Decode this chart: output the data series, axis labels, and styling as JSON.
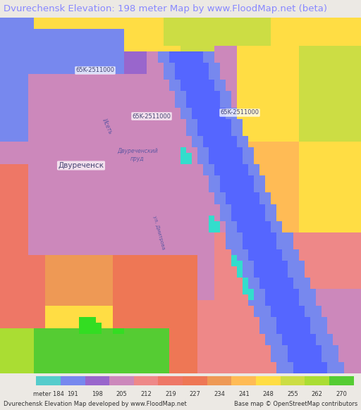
{
  "title": "Dvurechensk Elevation: 198 meter Map by www.FloodMap.net (beta)",
  "title_color": "#8888ff",
  "title_fontsize": 9.5,
  "bg_color": "#ece9e4",
  "legend_labels": [
    184,
    191,
    198,
    205,
    212,
    219,
    227,
    234,
    241,
    248,
    255,
    262,
    270
  ],
  "legend_colors": [
    "#55cccc",
    "#7788ee",
    "#9966cc",
    "#cc88bb",
    "#ee8888",
    "#ee7766",
    "#ee7755",
    "#ee9955",
    "#ffbb55",
    "#ffdd44",
    "#ccdd44",
    "#aadd33",
    "#55cc33"
  ],
  "footer_left": "Dvurechensk Elevation Map developed by www.FloodMap.net",
  "footer_right": "Base map © OpenStreetMap contributors",
  "footer_fontsize": 6.0
}
